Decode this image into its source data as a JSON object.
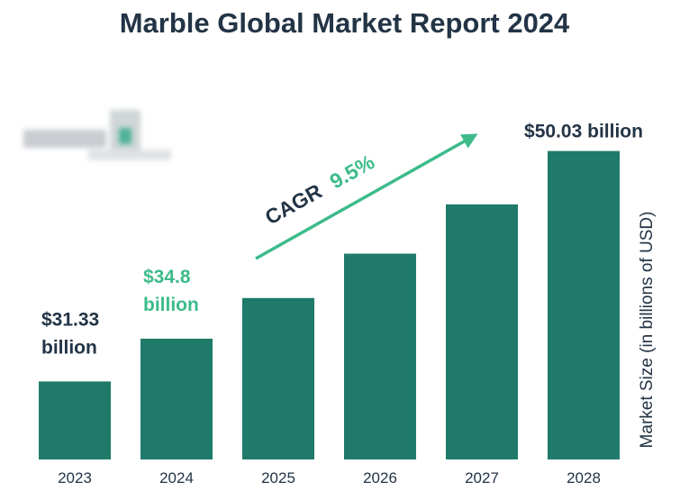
{
  "chart_data": {
    "type": "bar",
    "title": "Marble Global Market Report 2024",
    "categories": [
      "2023",
      "2024",
      "2025",
      "2026",
      "2027",
      "2028"
    ],
    "values": [
      31.33,
      34.8,
      38.1,
      41.7,
      45.7,
      50.03
    ],
    "ylabel": "Market Size (in billions of USD)",
    "ylim": [
      25,
      53
    ],
    "grid": false,
    "bar_color": "#207a69",
    "annotations": [
      {
        "category": "2023",
        "line1": "$31.33",
        "line2": "billion",
        "color": "#233446"
      },
      {
        "category": "2024",
        "line1": "$34.8",
        "line2": "billion",
        "color": "#3dbb8a"
      },
      {
        "category": "2028",
        "line1": "$50.03 billion",
        "line2": "",
        "color": "#233446"
      }
    ],
    "cagr": {
      "label": "CAGR",
      "value": "9.5%",
      "label_color": "#233446",
      "value_color": "#3dbb8a",
      "arrow_color": "#3dbb8a"
    }
  }
}
